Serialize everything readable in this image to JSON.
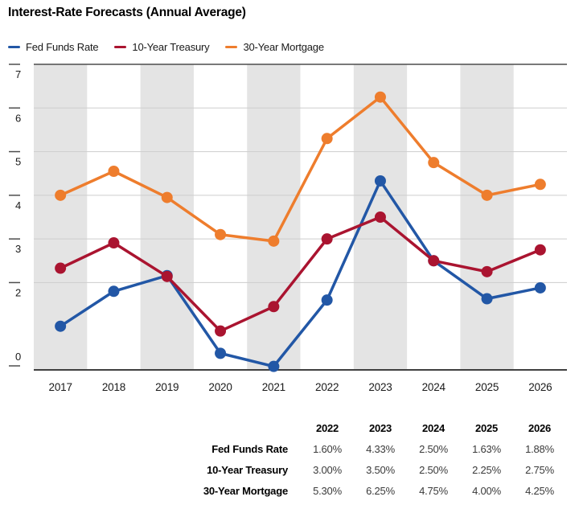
{
  "title": "Interest-Rate Forecasts (Annual Average)",
  "chart_data": {
    "type": "line",
    "x": [
      "2017",
      "2018",
      "2019",
      "2020",
      "2021",
      "2022",
      "2023",
      "2024",
      "2025",
      "2026"
    ],
    "series": [
      {
        "name": "Fed Funds Rate",
        "color": "#2257A6",
        "values": [
          1.0,
          1.8,
          2.16,
          0.38,
          0.08,
          1.6,
          4.33,
          2.5,
          1.63,
          1.88
        ]
      },
      {
        "name": "10-Year Treasury",
        "color": "#AA1430",
        "values": [
          2.33,
          2.91,
          2.14,
          0.89,
          1.45,
          3.0,
          3.5,
          2.5,
          2.25,
          2.75
        ]
      },
      {
        "name": "30-Year Mortgage",
        "color": "#EE7D2D",
        "values": [
          4.0,
          4.55,
          3.95,
          3.1,
          2.95,
          5.3,
          6.25,
          4.75,
          4.0,
          4.25
        ]
      }
    ],
    "ylim": [
      0,
      7
    ],
    "yticks": [
      0,
      2,
      3,
      4,
      5,
      6,
      7
    ],
    "grid": "horizontal-only",
    "legend_position": "top-left",
    "banded_year_columns": [
      "2017",
      "2019",
      "2021",
      "2023",
      "2025"
    ],
    "band_color": "#E4E4E4",
    "gridline_color": "#CDCDCD",
    "axis_color": "#404040",
    "xlabel": "",
    "ylabel": ""
  },
  "table": {
    "columns": [
      "2022",
      "2023",
      "2024",
      "2025",
      "2026"
    ],
    "rows": [
      {
        "label": "Fed Funds Rate",
        "values": [
          "1.60%",
          "4.33%",
          "2.50%",
          "1.63%",
          "1.88%"
        ]
      },
      {
        "label": "10-Year Treasury",
        "values": [
          "3.00%",
          "3.50%",
          "2.50%",
          "2.25%",
          "2.75%"
        ]
      },
      {
        "label": "30-Year Mortgage",
        "values": [
          "5.30%",
          "6.25%",
          "4.75%",
          "4.00%",
          "4.25%"
        ]
      }
    ]
  }
}
